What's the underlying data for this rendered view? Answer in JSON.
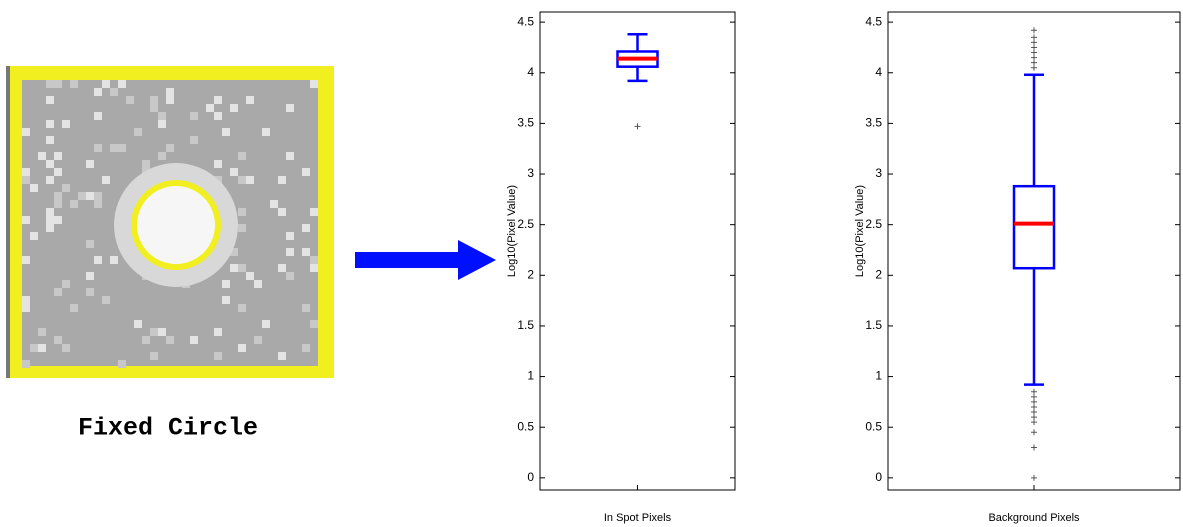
{
  "caption": "Fixed Circle",
  "chart_data": [
    {
      "type": "box",
      "ylabel": "Log10(Pixel Value)",
      "categories": [
        "In Spot Pixels"
      ],
      "boxes": [
        {
          "min": 3.92,
          "q1": 4.06,
          "median": 4.14,
          "q3": 4.21,
          "max": 4.38,
          "outliers": [
            3.47
          ]
        }
      ],
      "ylim": [
        -0.12,
        4.6
      ],
      "yticks": [
        0,
        0.5,
        1,
        1.5,
        2,
        2.5,
        3,
        3.5,
        4,
        4.5
      ],
      "color": "#0000ff",
      "median_color": "#ff0000"
    },
    {
      "type": "box",
      "ylabel": "Log10(Pixel Value)",
      "categories": [
        "Background Pixels"
      ],
      "boxes": [
        {
          "min": 0.92,
          "q1": 2.07,
          "median": 2.51,
          "q3": 2.88,
          "max": 3.98,
          "outliers": [
            4.05,
            4.1,
            4.15,
            4.2,
            4.25,
            4.3,
            4.35,
            4.42,
            0.85,
            0.8,
            0.75,
            0.7,
            0.65,
            0.6,
            0.55,
            0.45,
            0.3,
            0
          ]
        }
      ],
      "ylim": [
        -0.12,
        4.6
      ],
      "yticks": [
        0,
        0.5,
        1,
        1.5,
        2,
        2.5,
        3,
        3.5,
        4,
        4.5
      ],
      "color": "#0000ff",
      "median_color": "#ff0000"
    }
  ]
}
